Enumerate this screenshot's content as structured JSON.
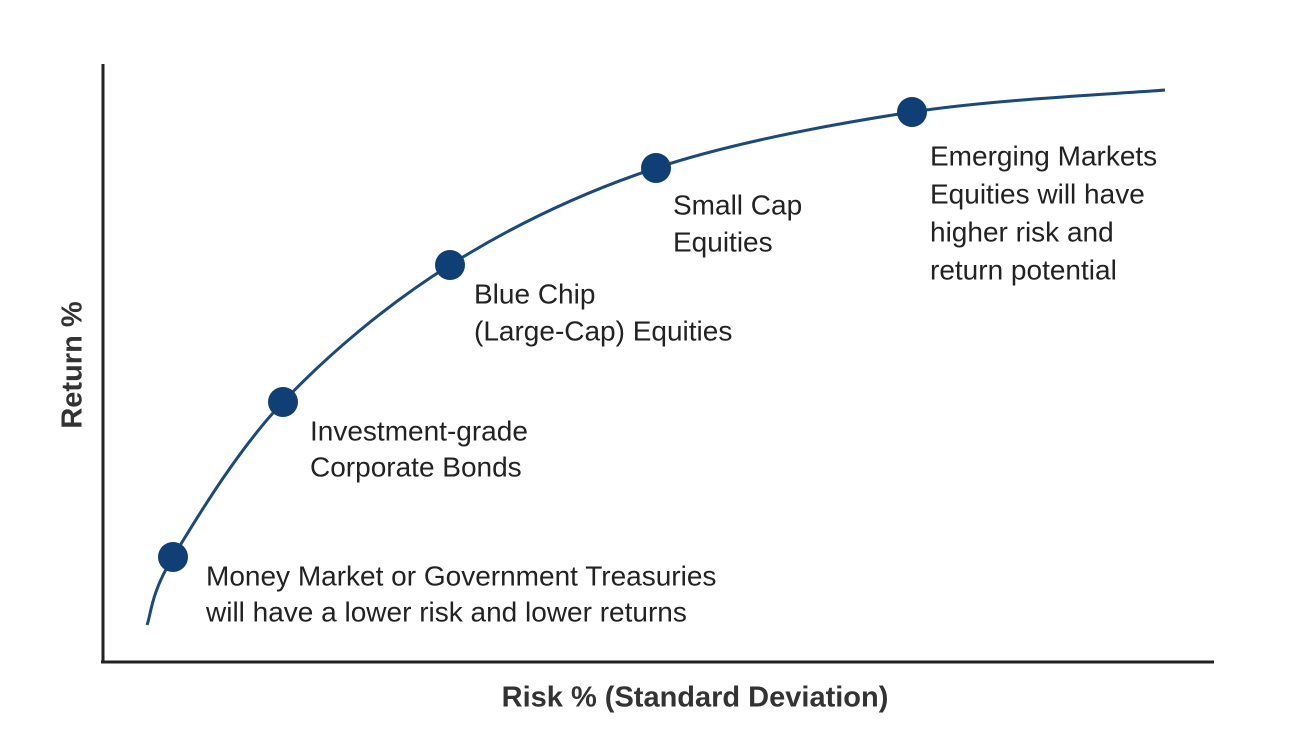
{
  "axes": {
    "x_label": "Risk % (Standard Deviation)",
    "y_label": "Return %"
  },
  "nodes": [
    {
      "label": [
        "Money Market or Government Treasuries",
        "will have a lower risk and lower returns"
      ]
    },
    {
      "label": [
        "Investment-grade",
        "Corporate Bonds"
      ]
    },
    {
      "label": [
        "Blue Chip",
        "(Large-Cap) Equities"
      ]
    },
    {
      "label": [
        "Small Cap",
        "Equities"
      ]
    },
    {
      "label": [
        "Emerging Markets",
        "Equities will have",
        "higher risk and",
        "return potential"
      ]
    }
  ]
}
